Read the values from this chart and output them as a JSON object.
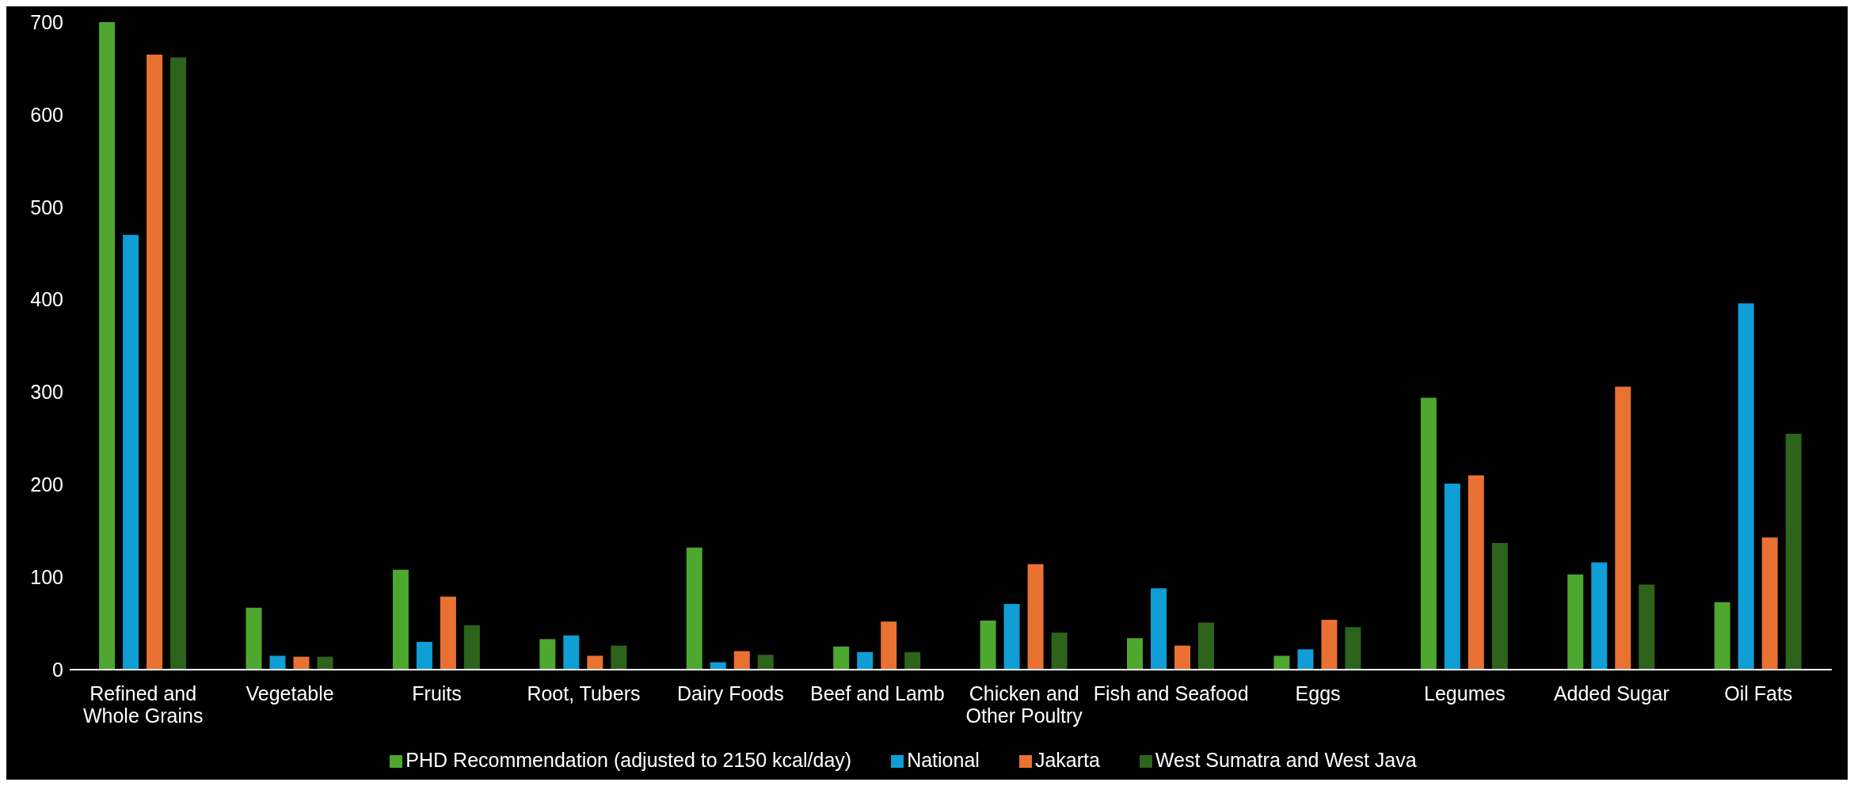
{
  "chart_data": {
    "type": "bar",
    "categories": [
      "Refined and Whole Grains",
      "Vegetable",
      "Fruits",
      "Root, Tubers",
      "Dairy Foods",
      "Beef and Lamb",
      "Chicken and Other Poultry",
      "Fish and Seafood",
      "Eggs",
      "Legumes",
      "Added Sugar",
      "Oil Fats"
    ],
    "series": [
      {
        "name": "PHD Recommendation (adjusted to 2150 kcal/day)",
        "color": "#4ea72e",
        "values": [
          700,
          67,
          108,
          33,
          132,
          25,
          53,
          34,
          15,
          294,
          103,
          73
        ]
      },
      {
        "name": "National",
        "color": "#0f9ed5",
        "values": [
          470,
          15,
          30,
          37,
          8,
          19,
          71,
          88,
          22,
          201,
          116,
          396
        ]
      },
      {
        "name": "Jakarta",
        "color": "#e97132",
        "values": [
          665,
          14,
          79,
          15,
          20,
          52,
          114,
          26,
          54,
          210,
          306,
          143
        ]
      },
      {
        "name": "West Sumatra and West Java",
        "color": "#2e631c",
        "values": [
          662,
          14,
          48,
          26,
          16,
          19,
          40,
          51,
          46,
          137,
          92,
          255
        ]
      }
    ],
    "ylim": [
      0,
      700
    ],
    "yticks": [
      0,
      100,
      200,
      300,
      400,
      500,
      600,
      700
    ],
    "grid": false,
    "legend": "bottom"
  }
}
